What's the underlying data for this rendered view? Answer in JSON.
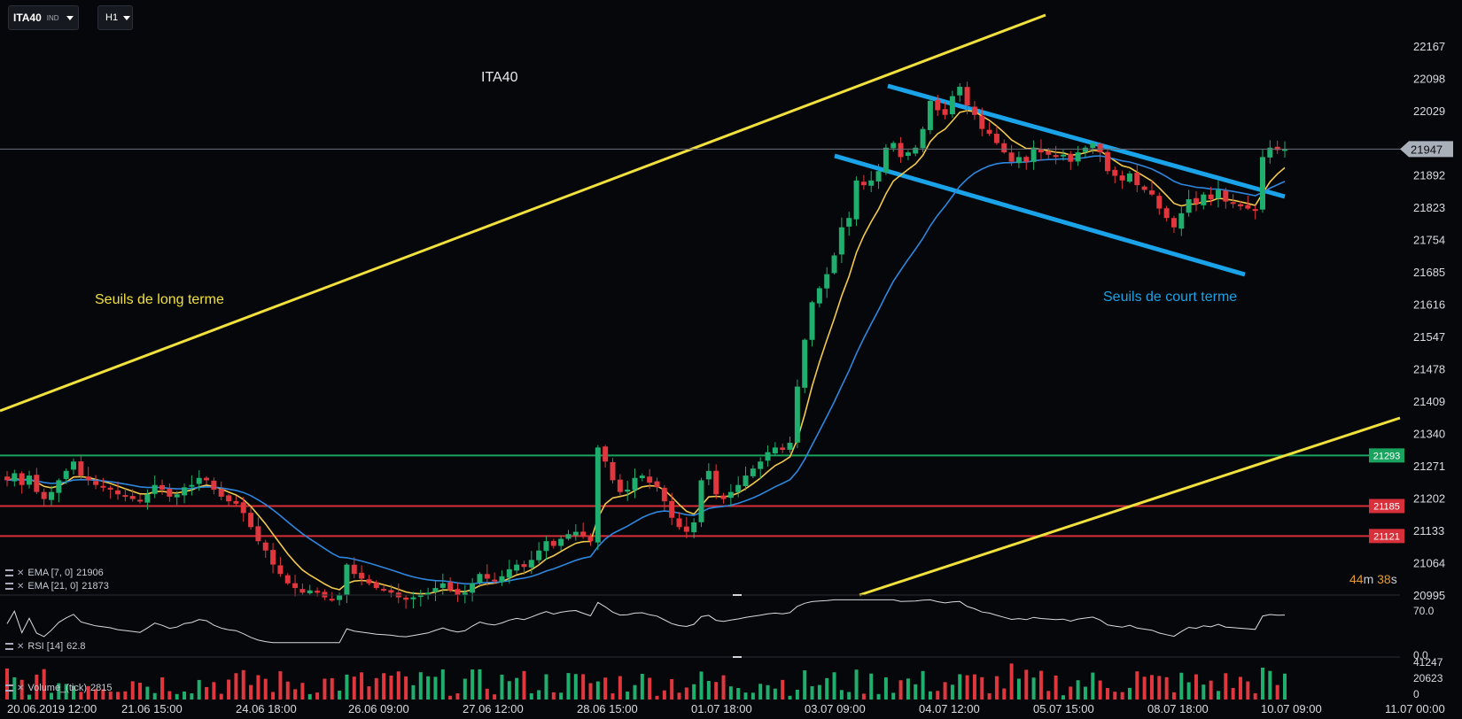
{
  "toolbar": {
    "symbol": "ITA40",
    "symbol_type": "IND",
    "timeframe": "H1"
  },
  "colors": {
    "background": "#05070a",
    "up": "#1fae6e",
    "down": "#e0363d",
    "ema7": "#f2c94c",
    "ema21": "#2e86de",
    "trend_long": "#f2e03c",
    "trend_short": "#1aa3e8",
    "support_green": "#1aa35f",
    "support_red": "#d8303a"
  },
  "chart_data": {
    "type": "candlestick",
    "title": "ITA40",
    "y_ticks": [
      22167,
      22098,
      22029,
      21892,
      21823,
      21754,
      21685,
      21616,
      21547,
      21478,
      21409,
      21340,
      21271,
      21202,
      21133,
      21064,
      20995
    ],
    "x_ticks": [
      "20.06.2019 12:00",
      "21.06 15:00",
      "24.06 18:00",
      "26.06 09:00",
      "27.06 12:00",
      "28.06 15:00",
      "01.07 18:00",
      "03.07 09:00",
      "04.07 12:00",
      "05.07 15:00",
      "08.07 18:00",
      "10.07 09:00",
      "11.07 00:00"
    ],
    "current_price": 21947,
    "horizontal_levels": [
      {
        "value": 21293,
        "label": "21293",
        "color": "#1aa35f"
      },
      {
        "value": 21185,
        "label": "21185",
        "color": "#d8303a"
      },
      {
        "value": 21121,
        "label": "21121",
        "color": "#d8303a"
      }
    ],
    "annotations": [
      {
        "text": "Seuils de long terme",
        "color": "#f2e03c"
      },
      {
        "text": "Seuils de court terme",
        "color": "#1aa3e8"
      }
    ],
    "ohlc_anchor_closes": [
      21240,
      21255,
      21230,
      21250,
      21215,
      21200,
      21215,
      21240,
      21260,
      21280,
      21250,
      21240,
      21230,
      21225,
      21220,
      21210,
      21205,
      21200,
      21195,
      21210,
      21230,
      21220,
      21205,
      21210,
      21225,
      21230,
      21245,
      21240,
      21220,
      21205,
      21195,
      21190,
      21170,
      21140,
      21110,
      21090,
      21060,
      21040,
      21020,
      21010,
      21000,
      21005,
      21000,
      20990,
      20985,
      20995,
      21060,
      21040,
      21030,
      21020,
      21010,
      21005,
      21000,
      20990,
      20985,
      20990,
      20995,
      21000,
      21010,
      21020,
      21005,
      20995,
      21000,
      21020,
      21040,
      21030,
      21025,
      21035,
      21050,
      21060,
      21055,
      21070,
      21090,
      21110,
      21100,
      21115,
      21125,
      21130,
      21120,
      21110,
      21310,
      21280,
      21240,
      21215,
      21220,
      21245,
      21250,
      21235,
      21225,
      21195,
      21160,
      21140,
      21130,
      21150,
      21240,
      21260,
      21210,
      21200,
      21215,
      21230,
      21250,
      21265,
      21280,
      21300,
      21310,
      21305,
      21320,
      21440,
      21540,
      21620,
      21650,
      21680,
      21720,
      21780,
      21800,
      21880,
      21870,
      21880,
      21900,
      21950,
      21960,
      21930,
      21940,
      21950,
      21990,
      22050,
      22030,
      22020,
      22060,
      22080,
      22040,
      22020,
      21990,
      21980,
      21960,
      21940,
      21920,
      21930,
      21920,
      21950,
      21940,
      21935,
      21930,
      21935,
      21920,
      21940,
      21950,
      21960,
      21940,
      21900,
      21890,
      21880,
      21895,
      21870,
      21860,
      21850,
      21820,
      21800,
      21780,
      21810,
      21840,
      21830,
      21850,
      21840,
      21860,
      21835,
      21830,
      21825,
      21820,
      21815,
      21930,
      21950,
      21945,
      21947
    ],
    "ema_7": {
      "label": "EMA [7, 0]",
      "value": 21906
    },
    "ema_21": {
      "label": "EMA [21, 0]",
      "value": 21873
    },
    "rsi": {
      "label": "RSI [14]",
      "value": 62.8,
      "ticks": [
        70.0,
        0.0
      ]
    },
    "volume": {
      "label": "Volume_(tick)",
      "value": 2815,
      "ticks": [
        41247,
        20623,
        0
      ]
    }
  },
  "timer": {
    "minutes": "44",
    "m": "m",
    "seconds": "38",
    "s": "s"
  }
}
